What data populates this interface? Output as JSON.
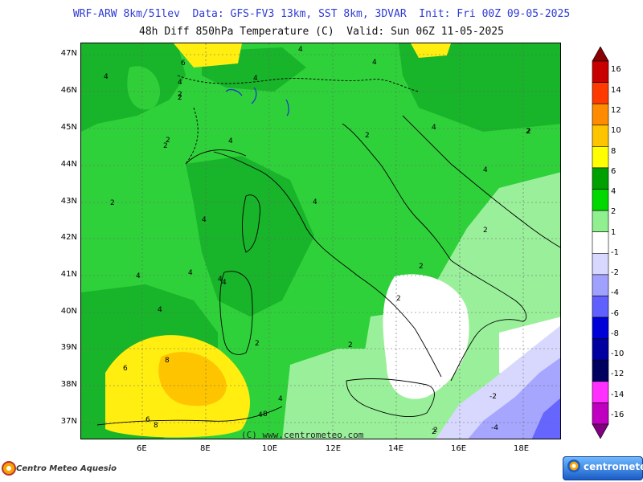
{
  "header": {
    "line1": "WRF-ARW 8km/51lev  Data: GFS-FV3 13km, SST 8km, 3DVAR  Init: Fri 00Z 09-05-2025",
    "line2": "48h Diff 850hPa Temperature (C)  Valid: Sun 06Z 11-05-2025"
  },
  "map": {
    "lat_labels": [
      "47N",
      "46N",
      "45N",
      "44N",
      "43N",
      "42N",
      "41N",
      "40N",
      "39N",
      "38N",
      "37N"
    ],
    "lon_labels": [
      "6E",
      "8E",
      "10E",
      "12E",
      "14E",
      "16E",
      "18E"
    ],
    "copyright": "(C) www.centrometeo.com",
    "contour_labels": [
      "6",
      "4",
      "4",
      "4",
      "4",
      "2",
      "4",
      "2",
      "4",
      "2",
      "4",
      "2",
      "4",
      "2",
      "4",
      "2",
      "2",
      "4",
      "4",
      "4",
      "4",
      "2",
      "2",
      "2",
      "2",
      "4",
      "4",
      "2",
      "2",
      "4",
      "8",
      "6",
      "6",
      "8",
      "4",
      "8",
      "2",
      "-2",
      "-4",
      "2"
    ]
  },
  "legend": {
    "levels": [
      "16",
      "14",
      "12",
      "10",
      "8",
      "6",
      "4",
      "2",
      "1",
      "-1",
      "-2",
      "-4",
      "-6",
      "-8",
      "-10",
      "-12",
      "-14",
      "-16"
    ],
    "colors": [
      "#8b0000",
      "#c80000",
      "#ff3a00",
      "#ff8c00",
      "#ffc400",
      "#ffff00",
      "#00a000",
      "#00d800",
      "#90f090",
      "#ffffff",
      "#d8d8ff",
      "#a0a0ff",
      "#6060ff",
      "#0000d8",
      "#0000a0",
      "#000060",
      "#ff30ff",
      "#c000c0",
      "#800080"
    ]
  },
  "logos": {
    "left": "Centro Meteo Aquesio",
    "right": "centrometeo"
  }
}
